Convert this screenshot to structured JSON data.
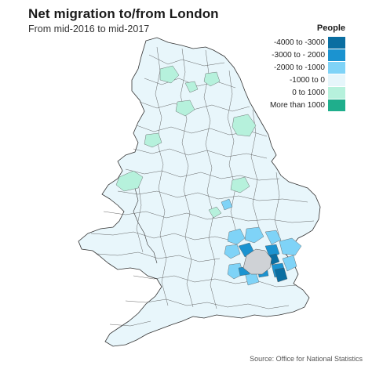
{
  "title": "Net migration to/from London",
  "subtitle": "From mid-2016 to mid-2017",
  "legend": {
    "title": "People",
    "items": [
      {
        "label": "-4000 to -3000",
        "color": "#0a6ea1"
      },
      {
        "label": "-3000 to - 2000",
        "color": "#1b93d0"
      },
      {
        "label": "-2000 to -1000",
        "color": "#7fd3f7"
      },
      {
        "label": "-1000 to 0",
        "color": "#e6f6fb"
      },
      {
        "label": "0 to 1000",
        "color": "#b6f1dc"
      },
      {
        "label": "More than 1000",
        "color": "#1fae8c"
      }
    ]
  },
  "source": "Source: Office for National Statistics",
  "colors": {
    "london": "#cfd2d6",
    "boundary": "#333333"
  }
}
